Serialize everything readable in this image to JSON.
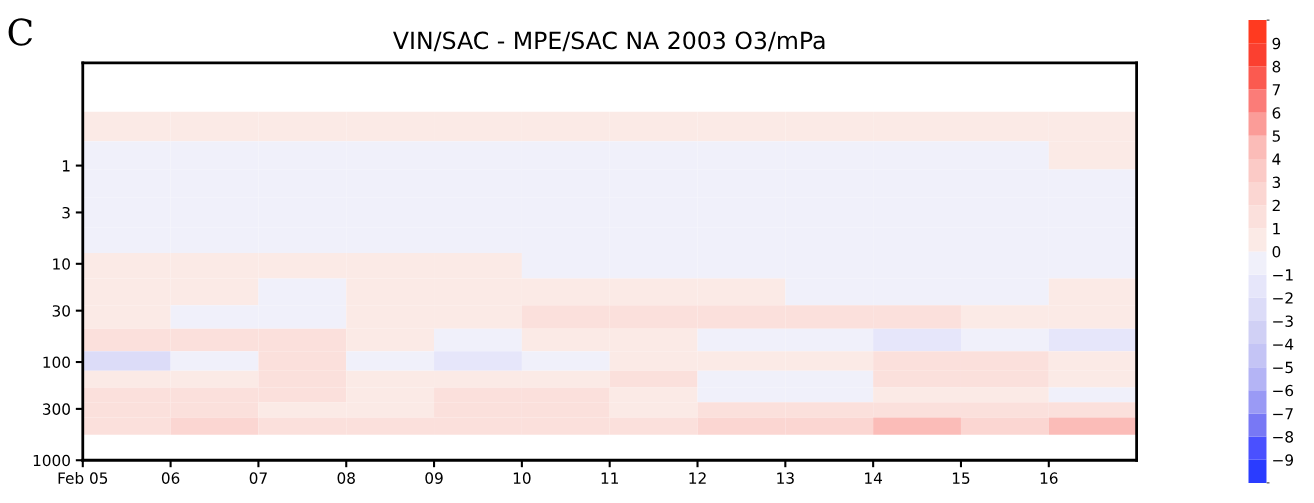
{
  "chart_data": {
    "type": "heatmap",
    "title": "VIN/SAC - MPE/SAC NA 2003 O3/mPa",
    "annotations": [
      "C"
    ],
    "x": [
      "2003-02-05T12:00",
      "2003-02-06T12:00",
      "2003-02-07T12:00",
      "2003-02-08T12:00",
      "2003-02-09T12:00",
      "2003-02-10T12:00",
      "2003-02-11T12:00",
      "2003-02-12T12:00",
      "2003-02-13T12:00",
      "2003-02-14T12:00",
      "2003-02-15T12:00",
      "2003-02-16T12:00"
    ],
    "y": [
      0.4,
      0.8,
      1.5,
      3,
      6,
      10,
      20,
      35,
      60,
      100,
      150,
      220,
      300,
      450
    ],
    "cells": [
      [
        0.5,
        0.5,
        0.5,
        0.5,
        0.5,
        0.5,
        0.5,
        0.5,
        0.5,
        0.5,
        0.5,
        0.5
      ],
      [
        -0.5,
        -0.5,
        -0.5,
        -0.5,
        -0.5,
        -0.5,
        -0.5,
        -0.5,
        -0.5,
        -0.5,
        -0.5,
        0.5
      ],
      [
        -0.5,
        -0.5,
        -0.5,
        -0.5,
        -0.5,
        -0.5,
        -0.5,
        -0.5,
        -0.5,
        -0.5,
        -0.5,
        -0.5
      ],
      [
        -0.5,
        -0.5,
        -0.5,
        -0.5,
        -0.5,
        -0.5,
        -0.5,
        -0.5,
        -0.5,
        -0.5,
        -0.5,
        -0.5
      ],
      [
        -0.5,
        -0.5,
        -0.5,
        -0.5,
        -0.5,
        -0.5,
        -0.5,
        -0.5,
        -0.5,
        -0.5,
        -0.5,
        -0.5
      ],
      [
        0.5,
        0.5,
        0.5,
        0.5,
        0.5,
        -0.5,
        -0.5,
        -0.5,
        -0.5,
        -0.5,
        -0.5,
        -0.5
      ],
      [
        0.5,
        0.5,
        -0.5,
        0.5,
        0.5,
        0.5,
        0.5,
        0.5,
        -0.5,
        -0.5,
        -0.5,
        0.5
      ],
      [
        0.5,
        -0.5,
        -0.5,
        0.5,
        0.5,
        1.5,
        1.5,
        1.5,
        1.5,
        1.5,
        0.5,
        0.5
      ],
      [
        1.5,
        1.5,
        1.5,
        0.5,
        -0.5,
        0.5,
        0.5,
        -0.5,
        -0.5,
        -1.5,
        -0.5,
        -1.5
      ],
      [
        -2.5,
        -0.5,
        1.5,
        -0.5,
        -1.5,
        -0.5,
        0.5,
        0.5,
        0.5,
        1.5,
        1.5,
        0.5
      ],
      [
        0.5,
        0.5,
        1.5,
        0.5,
        0.5,
        0.5,
        1.5,
        -0.5,
        -0.5,
        1.5,
        1.5,
        0.5
      ],
      [
        1.5,
        1.5,
        1.5,
        0.5,
        1.5,
        1.5,
        0.5,
        -0.5,
        -0.5,
        0.5,
        0.5,
        -0.5
      ],
      [
        1.5,
        1.5,
        0.5,
        0.5,
        1.5,
        1.5,
        0.5,
        1.5,
        1.5,
        1.5,
        1.5,
        1.5
      ],
      [
        1.5,
        2.5,
        1.5,
        1.5,
        1.5,
        1.5,
        1.5,
        2.5,
        2.5,
        4.5,
        2.5,
        4.5
      ]
    ],
    "colors": [
      "#2a3cff",
      "#4a50ff",
      "#7878f5",
      "#9a9af5",
      "#b4b4f5",
      "#c4c4f5",
      "#d0d0f5",
      "#dcdcf8",
      "#e6e6fa",
      "#f0f0fa",
      "#fbeae6",
      "#fbe0dc",
      "#fbd6d2",
      "#fbcac6",
      "#fbbcb8",
      "#fb9c98",
      "#fb7c78",
      "#fb5a50",
      "#fb4030",
      "#ff3a20"
    ],
    "clim": [
      -10,
      10
    ],
    "cticks": [
      -9,
      -8,
      -7,
      -6,
      -5,
      -4,
      -3,
      -2,
      -1,
      0,
      1,
      2,
      3,
      4,
      5,
      6,
      7,
      8,
      9
    ],
    "log": "y",
    "xlim": [
      "2003-02-05",
      "2003-02-17"
    ],
    "xticks": [
      {
        "value": "2003-02-05",
        "label": "Feb 05"
      },
      {
        "value": "2003-02-06",
        "label": "06"
      },
      {
        "value": "2003-02-07",
        "label": "07"
      },
      {
        "value": "2003-02-08",
        "label": "08"
      },
      {
        "value": "2003-02-09",
        "label": "09"
      },
      {
        "value": "2003-02-10",
        "label": "10"
      },
      {
        "value": "2003-02-11",
        "label": "11"
      },
      {
        "value": "2003-02-12",
        "label": "12"
      },
      {
        "value": "2003-02-13",
        "label": "13"
      },
      {
        "value": "2003-02-14",
        "label": "14"
      },
      {
        "value": "2003-02-15",
        "label": "15"
      },
      {
        "value": "2003-02-16",
        "label": "16"
      }
    ],
    "ylim": [
      1000,
      0.09
    ],
    "yticks": [
      1,
      3,
      10,
      30,
      100,
      300,
      1000
    ],
    "grid": false
  }
}
